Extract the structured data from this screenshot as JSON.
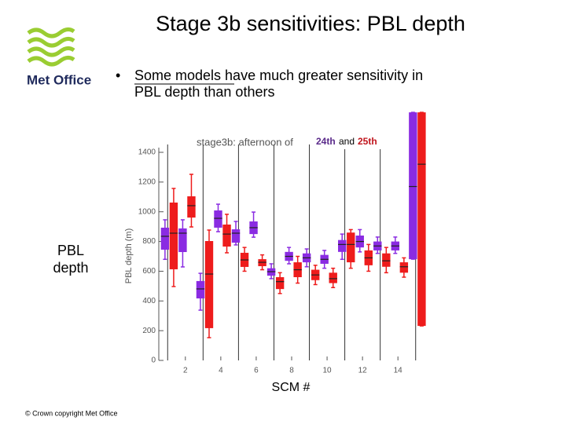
{
  "slide": {
    "title": "Stage 3b sensitivities: PBL depth",
    "logo_text": "Met Office",
    "bullet_lines": [
      "Some models have much greater sensitivity in",
      "PBL depth than others"
    ],
    "side_label_lines": [
      "PBL",
      "depth"
    ],
    "x_caption": "SCM #",
    "footer": "© Crown copyright   Met Office"
  },
  "chart_data": {
    "type": "box",
    "title": "stage3b: afternoon of",
    "legend_joiner": "and",
    "y_label": "PBL depth (m)",
    "x": [
      1,
      2,
      3,
      4,
      5,
      6,
      7,
      8,
      9,
      10,
      11,
      12,
      13,
      14,
      15
    ],
    "xlim": [
      0.5,
      15.5
    ],
    "xticks": [
      2,
      4,
      6,
      8,
      10,
      12,
      14
    ],
    "xgrid": [
      1,
      3,
      5,
      7,
      9,
      11,
      13,
      15
    ],
    "ylim": [
      0,
      1400
    ],
    "yticks": [
      0,
      200,
      400,
      600,
      800,
      1000,
      1200,
      1400
    ],
    "series": [
      {
        "name": "24th",
        "color": "#8a2be2",
        "whisker_low": [
          680,
          629,
          338,
          866,
          777,
          829,
          550,
          650,
          630,
          620,
          680,
          730,
          720,
          720,
          681
        ],
        "q1": [
          745,
          729,
          417,
          893,
          792,
          850,
          570,
          670,
          660,
          650,
          730,
          760,
          740,
          740,
          681
        ],
        "median": [
          835,
          856,
          481,
          956,
          856,
          893,
          597,
          700,
          690,
          680,
          780,
          800,
          770,
          770,
          1170
        ],
        "q3": [
          893,
          888,
          534,
          1009,
          882,
          935,
          620,
          730,
          720,
          710,
          810,
          840,
          800,
          800,
          1669
        ],
        "whisker_high": [
          946,
          946,
          586,
          1051,
          935,
          998,
          650,
          760,
          750,
          740,
          850,
          880,
          830,
          830,
          1669
        ]
      },
      {
        "name": "25th",
        "color": "#ee1c1c",
        "whisker_low": [
          497,
          898,
          153,
          724,
          600,
          610,
          450,
          520,
          510,
          490,
          620,
          600,
          590,
          560,
          232
        ],
        "q1": [
          613,
          961,
          217,
          766,
          629,
          634,
          480,
          560,
          540,
          520,
          660,
          640,
          630,
          590,
          232
        ],
        "median": [
          856,
          1041,
          581,
          850,
          676,
          660,
          530,
          610,
          575,
          550,
          780,
          690,
          670,
          630,
          1320
        ],
        "q3": [
          1062,
          1104,
          803,
          914,
          724,
          681,
          560,
          660,
          610,
          590,
          860,
          740,
          720,
          660,
          1669
        ],
        "whisker_high": [
          1157,
          1252,
          877,
          983,
          760,
          710,
          590,
          700,
          640,
          620,
          880,
          780,
          760,
          690,
          1669
        ]
      }
    ]
  }
}
